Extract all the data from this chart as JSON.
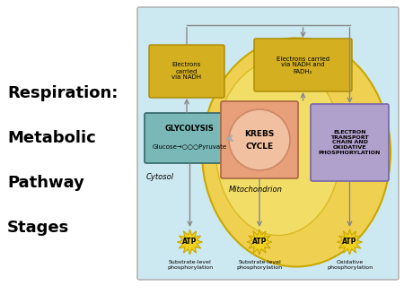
{
  "title_lines": [
    "Respiration:",
    "Metabolic",
    "Pathway",
    "Stages"
  ],
  "bg_color": "#ffffff",
  "diagram_bg": "#cce8f0",
  "mito_color": "#f0d050",
  "mito_inner_color": "#f5e070",
  "glycolysis_box_color": "#7ab8b8",
  "krebs_box_color": "#e8a07a",
  "krebs_circle_color": "#f0c0a0",
  "etc_box_color": "#b0a0cc",
  "electron_box_color": "#d4b020",
  "atp_color": "#f0d020",
  "arrow_color": "#888888",
  "atp_labels": [
    "Substrate-level\nphosphorylation",
    "Substrate-level\nphosphorylation",
    "Oxidative\nphosphorylation"
  ],
  "cytosol_label": "Cytosol",
  "mitochondrion_label": "Mitochondrion",
  "electron_box1_text": "Electrons\ncarried\nvia NADH",
  "electron_box2_text": "Electrons carried\nvia NADH and\nFADH₂",
  "etc_text": "ELECTRON\nTRANSPORT\nCHAIN AND\nOXIDATIVE\nPHOSPHORYLATION",
  "glycolysis_line1": "GLYCOLYSIS",
  "glycolysis_line2": "Glucose→○○○Pyruvate",
  "krebs_text": "KREBS\nCYCLE"
}
